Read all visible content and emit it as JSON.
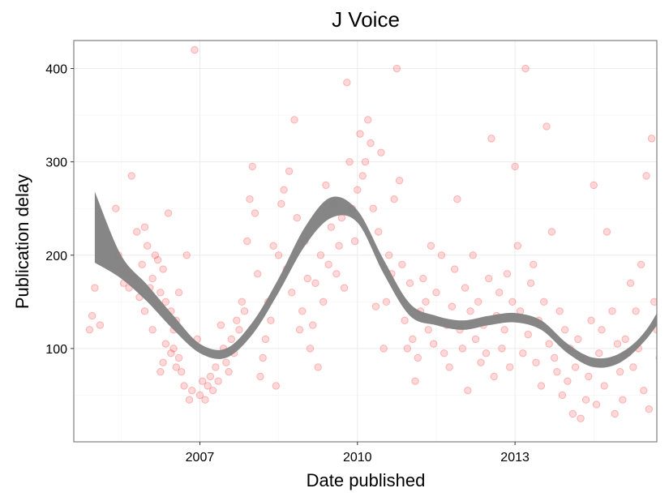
{
  "chart_data": {
    "type": "scatter",
    "title": "J Voice",
    "xlabel": "Date published",
    "ylabel": "Publication delay",
    "xlim": [
      2004.6,
      2015.7
    ],
    "ylim": [
      0,
      430
    ],
    "x_ticks": [
      2007,
      2010,
      2013
    ],
    "x_tick_labels": [
      "2007",
      "2010",
      "2013"
    ],
    "y_ticks": [
      100,
      200,
      300,
      400
    ],
    "y_tick_labels": [
      "100",
      "200",
      "300",
      "400"
    ],
    "grid": true,
    "legend": "none",
    "colors": {
      "points": "#ff0000",
      "band": "#808080",
      "grid": "#ebebeb",
      "frame": "#7f7f7f"
    },
    "point_opacity": 0.15,
    "series": [
      {
        "type": "scatter",
        "points": [
          [
            2004.9,
            120
          ],
          [
            2004.95,
            135
          ],
          [
            2005.0,
            165
          ],
          [
            2005.1,
            125
          ],
          [
            2005.4,
            250
          ],
          [
            2005.45,
            200
          ],
          [
            2005.5,
            185
          ],
          [
            2005.55,
            170
          ],
          [
            2005.6,
            180
          ],
          [
            2005.65,
            165
          ],
          [
            2005.7,
            285
          ],
          [
            2005.75,
            175
          ],
          [
            2005.8,
            225
          ],
          [
            2005.85,
            155
          ],
          [
            2005.9,
            190
          ],
          [
            2005.95,
            230
          ],
          [
            2006.0,
            210
          ],
          [
            2006.05,
            165
          ],
          [
            2006.1,
            120
          ],
          [
            2006.15,
            200
          ],
          [
            2006.2,
            195
          ],
          [
            2006.25,
            160
          ],
          [
            2006.3,
            185
          ],
          [
            2006.35,
            150
          ],
          [
            2006.4,
            245
          ],
          [
            2006.45,
            140
          ],
          [
            2006.5,
            120
          ],
          [
            2006.55,
            80
          ],
          [
            2006.6,
            90
          ],
          [
            2006.65,
            75
          ],
          [
            2006.7,
            60
          ],
          [
            2006.75,
            200
          ],
          [
            2006.8,
            45
          ],
          [
            2006.85,
            55
          ],
          [
            2006.9,
            420
          ],
          [
            2006.95,
            110
          ],
          [
            2006.25,
            75
          ],
          [
            2006.35,
            105
          ],
          [
            2006.45,
            95
          ],
          [
            2006.55,
            130
          ],
          [
            2006.1,
            175
          ],
          [
            2006.2,
            145
          ],
          [
            2006.3,
            85
          ],
          [
            2006.5,
            100
          ],
          [
            2006.6,
            160
          ],
          [
            2005.95,
            140
          ],
          [
            2007.0,
            50
          ],
          [
            2007.05,
            65
          ],
          [
            2007.1,
            45
          ],
          [
            2007.15,
            60
          ],
          [
            2007.2,
            70
          ],
          [
            2007.25,
            55
          ],
          [
            2007.3,
            80
          ],
          [
            2007.35,
            65
          ],
          [
            2007.4,
            125
          ],
          [
            2007.45,
            100
          ],
          [
            2007.5,
            85
          ],
          [
            2007.55,
            75
          ],
          [
            2007.6,
            110
          ],
          [
            2007.65,
            95
          ],
          [
            2007.7,
            130
          ],
          [
            2007.75,
            120
          ],
          [
            2007.8,
            150
          ],
          [
            2007.85,
            140
          ],
          [
            2007.9,
            215
          ],
          [
            2007.95,
            260
          ],
          [
            2008.0,
            295
          ],
          [
            2008.05,
            245
          ],
          [
            2008.1,
            180
          ],
          [
            2008.15,
            70
          ],
          [
            2008.2,
            90
          ],
          [
            2008.25,
            110
          ],
          [
            2008.3,
            150
          ],
          [
            2008.35,
            130
          ],
          [
            2008.4,
            210
          ],
          [
            2008.45,
            60
          ],
          [
            2008.5,
            200
          ],
          [
            2008.55,
            255
          ],
          [
            2008.6,
            270
          ],
          [
            2008.65,
            185
          ],
          [
            2008.7,
            290
          ],
          [
            2008.75,
            160
          ],
          [
            2008.8,
            345
          ],
          [
            2008.85,
            240
          ],
          [
            2008.9,
            120
          ],
          [
            2008.95,
            140
          ],
          [
            2009.0,
            215
          ],
          [
            2009.05,
            175
          ],
          [
            2009.1,
            100
          ],
          [
            2009.15,
            125
          ],
          [
            2009.2,
            170
          ],
          [
            2009.25,
            80
          ],
          [
            2009.3,
            200
          ],
          [
            2009.35,
            150
          ],
          [
            2009.4,
            275
          ],
          [
            2009.45,
            190
          ],
          [
            2009.5,
            230
          ],
          [
            2009.55,
            255
          ],
          [
            2009.6,
            180
          ],
          [
            2009.65,
            210
          ],
          [
            2009.7,
            240
          ],
          [
            2009.75,
            165
          ],
          [
            2009.8,
            385
          ],
          [
            2009.85,
            300
          ],
          [
            2009.9,
            250
          ],
          [
            2009.95,
            215
          ],
          [
            2010.0,
            270
          ],
          [
            2010.05,
            330
          ],
          [
            2010.1,
            285
          ],
          [
            2010.15,
            300
          ],
          [
            2010.2,
            345
          ],
          [
            2010.25,
            320
          ],
          [
            2010.3,
            250
          ],
          [
            2010.35,
            145
          ],
          [
            2010.4,
            225
          ],
          [
            2010.45,
            310
          ],
          [
            2010.5,
            100
          ],
          [
            2010.55,
            150
          ],
          [
            2010.6,
            200
          ],
          [
            2010.65,
            180
          ],
          [
            2010.7,
            260
          ],
          [
            2010.75,
            400
          ],
          [
            2010.8,
            280
          ],
          [
            2010.85,
            190
          ],
          [
            2010.9,
            130
          ],
          [
            2010.95,
            100
          ],
          [
            2011.0,
            170
          ],
          [
            2011.05,
            110
          ],
          [
            2011.1,
            65
          ],
          [
            2011.15,
            90
          ],
          [
            2011.2,
            140
          ],
          [
            2011.25,
            175
          ],
          [
            2011.3,
            150
          ],
          [
            2011.35,
            120
          ],
          [
            2011.4,
            210
          ],
          [
            2011.45,
            105
          ],
          [
            2011.5,
            160
          ],
          [
            2011.55,
            130
          ],
          [
            2011.6,
            200
          ],
          [
            2011.65,
            95
          ],
          [
            2011.7,
            125
          ],
          [
            2011.75,
            80
          ],
          [
            2011.8,
            145
          ],
          [
            2011.85,
            185
          ],
          [
            2011.9,
            260
          ],
          [
            2011.95,
            120
          ],
          [
            2012.0,
            100
          ],
          [
            2012.05,
            165
          ],
          [
            2012.1,
            55
          ],
          [
            2012.15,
            140
          ],
          [
            2012.2,
            200
          ],
          [
            2012.25,
            110
          ],
          [
            2012.3,
            150
          ],
          [
            2012.35,
            85
          ],
          [
            2012.4,
            125
          ],
          [
            2012.45,
            95
          ],
          [
            2012.5,
            175
          ],
          [
            2012.55,
            325
          ],
          [
            2012.6,
            70
          ],
          [
            2012.65,
            135
          ],
          [
            2012.7,
            160
          ],
          [
            2012.75,
            100
          ],
          [
            2012.8,
            120
          ],
          [
            2012.85,
            180
          ],
          [
            2012.9,
            80
          ],
          [
            2012.95,
            150
          ],
          [
            2013.0,
            295
          ],
          [
            2013.05,
            210
          ],
          [
            2013.1,
            140
          ],
          [
            2013.15,
            95
          ],
          [
            2013.2,
            400
          ],
          [
            2013.25,
            115
          ],
          [
            2013.3,
            170
          ],
          [
            2013.35,
            190
          ],
          [
            2013.4,
            85
          ],
          [
            2013.45,
            130
          ],
          [
            2013.5,
            60
          ],
          [
            2013.55,
            150
          ],
          [
            2013.6,
            338
          ],
          [
            2013.65,
            105
          ],
          [
            2013.7,
            225
          ],
          [
            2013.75,
            90
          ],
          [
            2013.8,
            75
          ],
          [
            2013.85,
            140
          ],
          [
            2013.9,
            50
          ],
          [
            2013.95,
            120
          ],
          [
            2014.0,
            65
          ],
          [
            2014.05,
            100
          ],
          [
            2014.1,
            30
          ],
          [
            2014.15,
            80
          ],
          [
            2014.2,
            110
          ],
          [
            2014.25,
            25
          ],
          [
            2014.3,
            90
          ],
          [
            2014.35,
            45
          ],
          [
            2014.4,
            70
          ],
          [
            2014.45,
            130
          ],
          [
            2014.5,
            275
          ],
          [
            2014.55,
            40
          ],
          [
            2014.6,
            95
          ],
          [
            2014.65,
            120
          ],
          [
            2014.7,
            60
          ],
          [
            2014.75,
            225
          ],
          [
            2014.8,
            85
          ],
          [
            2014.85,
            140
          ],
          [
            2014.9,
            30
          ],
          [
            2014.95,
            105
          ],
          [
            2015.0,
            75
          ],
          [
            2015.05,
            45
          ],
          [
            2015.1,
            110
          ],
          [
            2015.15,
            95
          ],
          [
            2015.2,
            170
          ],
          [
            2015.25,
            80
          ],
          [
            2015.3,
            140
          ],
          [
            2015.35,
            100
          ],
          [
            2015.4,
            190
          ],
          [
            2015.45,
            55
          ],
          [
            2015.5,
            285
          ],
          [
            2015.55,
            35
          ],
          [
            2015.6,
            325
          ],
          [
            2015.65,
            150
          ],
          [
            2015.7,
            120
          ],
          [
            2015.75,
            90
          ],
          [
            2015.8,
            230
          ],
          [
            2015.85,
            65
          ],
          [
            2015.9,
            160
          ],
          [
            2015.95,
            100
          ],
          [
            2016.0,
            135
          ],
          [
            2016.05,
            30
          ],
          [
            2016.1,
            175
          ],
          [
            2016.15,
            240
          ],
          [
            2016.2,
            200
          ],
          [
            2016.25,
            260
          ],
          [
            2016.3,
            180
          ],
          [
            2016.35,
            210
          ],
          [
            2016.4,
            150
          ],
          [
            2016.45,
            220
          ],
          [
            2016.5,
            190
          ],
          [
            2016.55,
            205
          ]
        ]
      },
      {
        "type": "smooth_band",
        "x": [
          2005.0,
          2005.5,
          2006.0,
          2006.5,
          2007.0,
          2007.5,
          2008.0,
          2008.5,
          2009.0,
          2009.5,
          2010.0,
          2010.5,
          2011.0,
          2011.5,
          2012.0,
          2012.5,
          2013.0,
          2013.5,
          2014.0,
          2014.5,
          2015.0,
          2015.5,
          2016.0,
          2016.5
        ],
        "lower": [
          192,
          175,
          150,
          120,
          95,
          90,
          115,
          160,
          210,
          240,
          235,
          180,
          135,
          125,
          120,
          125,
          128,
          120,
          95,
          80,
          85,
          110,
          150,
          190
        ],
        "upper": [
          268,
          200,
          168,
          135,
          105,
          100,
          128,
          175,
          230,
          262,
          248,
          195,
          148,
          135,
          130,
          135,
          138,
          130,
          105,
          90,
          95,
          120,
          170,
          225
        ]
      }
    ]
  }
}
